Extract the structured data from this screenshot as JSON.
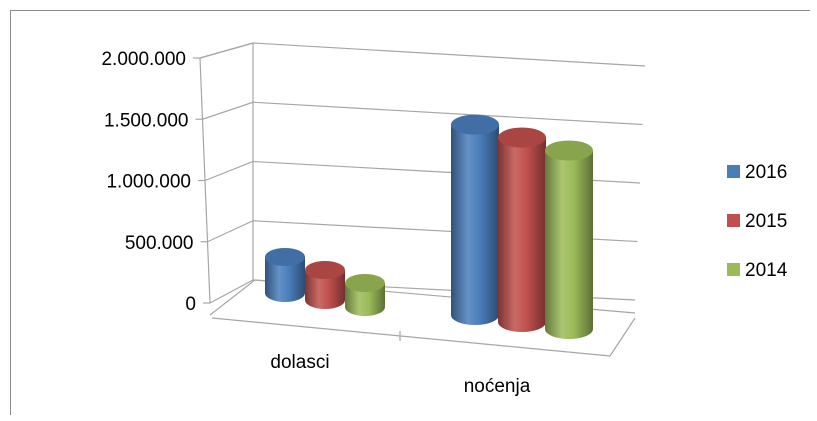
{
  "chart_data": {
    "type": "bar",
    "style": "3d-cylinder",
    "categories": [
      "dolasci",
      "noćenja"
    ],
    "series": [
      {
        "name": "2016",
        "values": [
          180000,
          1600000
        ],
        "color": "#4a7ebb"
      },
      {
        "name": "2015",
        "values": [
          150000,
          1550000
        ],
        "color": "#c0504d"
      },
      {
        "name": "2014",
        "values": [
          120000,
          1500000
        ],
        "color": "#9bbb59"
      }
    ],
    "yticks": [
      "0",
      "500.000",
      "1.000.000",
      "1.500.000",
      "2.000.000"
    ],
    "ylim": [
      0,
      2000000
    ],
    "grid": true,
    "legend_position": "right"
  }
}
